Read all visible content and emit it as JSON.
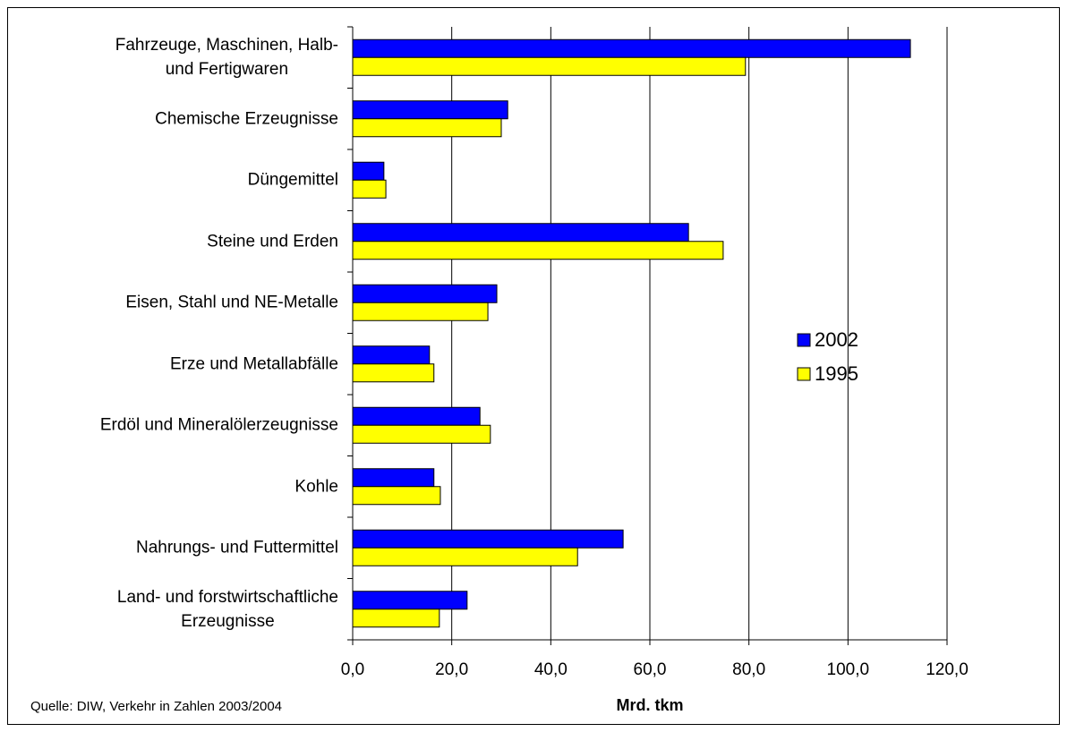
{
  "chart_data": {
    "type": "hbar",
    "categories": [
      "Fahrzeuge, Maschinen, Halb-\nund Fertigwaren",
      "Chemische Erzeugnisse",
      "Düngemittel",
      "Steine und Erden",
      "Eisen, Stahl und NE-Metalle",
      "Erze und Metallabfälle",
      "Erdöl und Mineralölerzeugnisse",
      "Kohle",
      "Nahrungs- und Futtermittel",
      "Land- und forstwirtschaftliche\nErzeugnisse"
    ],
    "series": [
      {
        "name": "2002",
        "color": "#0000ff",
        "values": [
          112.6,
          31.3,
          6.3,
          67.8,
          29.1,
          15.5,
          25.7,
          16.4,
          54.6,
          23.1
        ]
      },
      {
        "name": "1995",
        "color": "#ffff00",
        "values": [
          79.3,
          30.0,
          6.7,
          74.8,
          27.3,
          16.4,
          27.8,
          17.7,
          45.4,
          17.5
        ]
      }
    ],
    "xlim": [
      0,
      120
    ],
    "xticks": [
      {
        "value": 0,
        "label": "0,0"
      },
      {
        "value": 20,
        "label": "20,0"
      },
      {
        "value": 40,
        "label": "40,0"
      },
      {
        "value": 60,
        "label": "60,0"
      },
      {
        "value": 80,
        "label": "80,0"
      },
      {
        "value": 100,
        "label": "100,0"
      },
      {
        "value": 120,
        "label": "120,0"
      }
    ],
    "grid": true,
    "xlabel": "Mrd. tkm",
    "source": "Quelle: DIW, Verkehr in Zahlen 2003/2004"
  }
}
